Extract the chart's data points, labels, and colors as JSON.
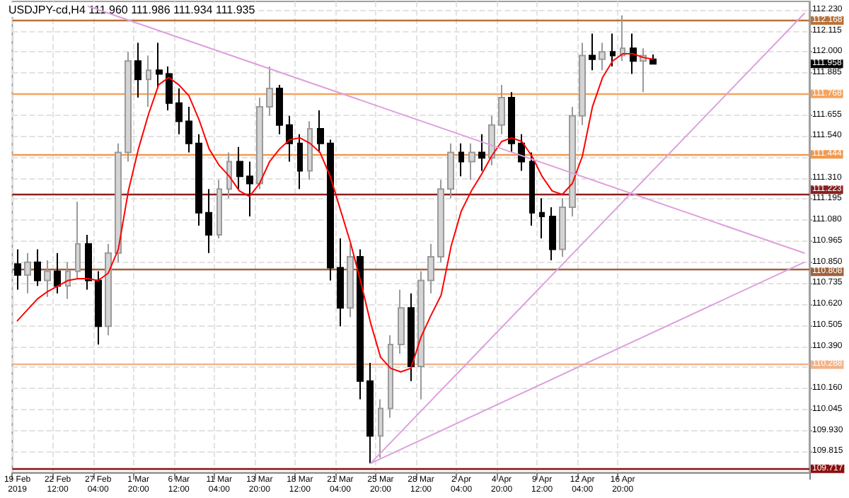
{
  "chart_data": {
    "type": "candlestick",
    "title": "USDJPY-cd,H4 111.960 111.986 111.934 111.935",
    "categories": [
      "19 Feb 2019",
      null,
      null,
      null,
      "22 Feb 12:00",
      null,
      null,
      null,
      "27 Feb 04:00",
      null,
      null,
      null,
      "1 Mar 20:00",
      null,
      null,
      null,
      "6 Mar 12:00",
      null,
      null,
      null,
      "11 Mar 04:00",
      null,
      null,
      null,
      "13 Mar 20:00",
      null,
      null,
      null,
      "18 Mar 12:00",
      null,
      null,
      null,
      "21 Mar 04:00",
      null,
      null,
      null,
      "25 Mar 20:00",
      null,
      null,
      null,
      "28 Mar 12:00",
      null,
      null,
      null,
      "2 Apr 04:00",
      null,
      null,
      null,
      "4 Apr 20:00",
      null,
      null,
      null,
      "9 Apr 12:00",
      null,
      null,
      null,
      "12 Apr 04:00",
      null,
      null,
      null,
      "16 Apr 20:00",
      null,
      null,
      null,
      null,
      null,
      null,
      null,
      null,
      null,
      null,
      null,
      null,
      null,
      null,
      null,
      null,
      null,
      null
    ],
    "ohlc": [
      [
        110.84,
        110.92,
        110.7,
        110.78
      ],
      [
        110.78,
        110.9,
        110.68,
        110.85
      ],
      [
        110.85,
        110.92,
        110.72,
        110.75
      ],
      [
        110.75,
        110.86,
        110.66,
        110.8
      ],
      [
        110.8,
        110.9,
        110.68,
        110.72
      ],
      [
        110.72,
        110.85,
        110.65,
        110.8
      ],
      [
        110.8,
        111.18,
        110.76,
        110.95
      ],
      [
        110.95,
        111.0,
        110.7,
        110.75
      ],
      [
        110.75,
        110.8,
        110.4,
        110.5
      ],
      [
        110.5,
        110.95,
        110.45,
        110.9
      ],
      [
        110.9,
        111.5,
        110.85,
        111.45
      ],
      [
        111.45,
        112.0,
        111.4,
        111.95
      ],
      [
        111.95,
        112.05,
        111.75,
        111.85
      ],
      [
        111.85,
        111.98,
        111.7,
        111.9
      ],
      [
        111.9,
        112.05,
        111.8,
        111.88
      ],
      [
        111.88,
        111.92,
        111.68,
        111.72
      ],
      [
        111.72,
        111.8,
        111.55,
        111.62
      ],
      [
        111.62,
        111.7,
        111.45,
        111.5
      ],
      [
        111.5,
        111.55,
        111.05,
        111.12
      ],
      [
        111.12,
        111.25,
        110.9,
        111.0
      ],
      [
        111.0,
        111.3,
        110.98,
        111.25
      ],
      [
        111.25,
        111.45,
        111.2,
        111.4
      ],
      [
        111.4,
        111.48,
        111.25,
        111.32
      ],
      [
        111.32,
        111.4,
        111.1,
        111.28
      ],
      [
        111.28,
        111.75,
        111.25,
        111.7
      ],
      [
        111.7,
        111.92,
        111.65,
        111.8
      ],
      [
        111.8,
        111.82,
        111.55,
        111.6
      ],
      [
        111.6,
        111.65,
        111.4,
        111.5
      ],
      [
        111.5,
        111.55,
        111.25,
        111.35
      ],
      [
        111.35,
        111.62,
        111.3,
        111.58
      ],
      [
        111.58,
        111.68,
        111.45,
        111.5
      ],
      [
        111.5,
        111.52,
        110.75,
        110.82
      ],
      [
        110.82,
        110.98,
        110.5,
        110.6
      ],
      [
        110.6,
        110.95,
        110.55,
        110.88
      ],
      [
        110.88,
        110.92,
        110.1,
        110.2
      ],
      [
        110.2,
        110.3,
        109.75,
        109.9
      ],
      [
        109.9,
        110.1,
        109.78,
        110.05
      ],
      [
        110.05,
        110.45,
        110.0,
        110.4
      ],
      [
        110.4,
        110.7,
        110.35,
        110.6
      ],
      [
        110.6,
        110.68,
        110.2,
        110.28
      ],
      [
        110.28,
        110.8,
        110.1,
        110.75
      ],
      [
        110.75,
        110.95,
        110.68,
        110.88
      ],
      [
        110.88,
        111.3,
        110.85,
        111.25
      ],
      [
        111.25,
        111.5,
        111.2,
        111.45
      ],
      [
        111.45,
        111.5,
        111.32,
        111.4
      ],
      [
        111.4,
        111.5,
        111.3,
        111.45
      ],
      [
        111.45,
        111.55,
        111.35,
        111.42
      ],
      [
        111.42,
        111.65,
        111.38,
        111.6
      ],
      [
        111.6,
        111.82,
        111.55,
        111.75
      ],
      [
        111.75,
        111.78,
        111.45,
        111.5
      ],
      [
        111.5,
        111.55,
        111.35,
        111.4
      ],
      [
        111.4,
        111.45,
        111.05,
        111.12
      ],
      [
        111.12,
        111.2,
        110.98,
        111.1
      ],
      [
        111.1,
        111.15,
        110.86,
        110.92
      ],
      [
        110.92,
        111.2,
        110.88,
        111.15
      ],
      [
        111.15,
        111.7,
        111.1,
        111.65
      ],
      [
        111.65,
        112.05,
        111.6,
        111.98
      ],
      [
        111.98,
        112.1,
        111.9,
        111.96
      ],
      [
        111.96,
        112.05,
        111.9,
        112.0
      ],
      [
        112.0,
        112.1,
        111.92,
        111.98
      ],
      [
        111.98,
        112.2,
        111.95,
        112.02
      ],
      [
        112.02,
        112.1,
        111.88,
        111.95
      ],
      [
        111.95,
        112.02,
        111.78,
        111.98
      ],
      [
        111.96,
        111.986,
        111.934,
        111.935
      ],
      null,
      null,
      null,
      null,
      null,
      null,
      null,
      null,
      null,
      null,
      null,
      null,
      null,
      null,
      null
    ],
    "series": [
      {
        "type": "line",
        "color": "#ff0000",
        "values": [
          110.53,
          110.59,
          110.65,
          110.69,
          110.72,
          110.75,
          110.76,
          110.76,
          110.75,
          110.79,
          110.92,
          111.24,
          111.47,
          111.66,
          111.82,
          111.86,
          111.82,
          111.76,
          111.63,
          111.47,
          111.38,
          111.32,
          111.24,
          111.21,
          111.28,
          111.4,
          111.47,
          111.52,
          111.53,
          111.5,
          111.45,
          111.32,
          111.14,
          110.96,
          110.75,
          110.52,
          110.33,
          110.27,
          110.25,
          110.27,
          110.44,
          110.56,
          110.67,
          110.94,
          111.13,
          111.24,
          111.33,
          111.43,
          111.51,
          111.53,
          111.51,
          111.43,
          111.32,
          111.24,
          111.22,
          111.28,
          111.43,
          111.7,
          111.86,
          111.95,
          111.99,
          111.99,
          111.97,
          111.96,
          null,
          null,
          null,
          null,
          null,
          null,
          null,
          null,
          null,
          null,
          null,
          null,
          null,
          null,
          null
        ]
      },
      {
        "type": "line",
        "color": "#dda0dd",
        "values": [
          null,
          null,
          null,
          null,
          null,
          null,
          null,
          112.25,
          null,
          null,
          null,
          null,
          null,
          null,
          null,
          null,
          null,
          null,
          null,
          null,
          null,
          null,
          null,
          null,
          null,
          null,
          null,
          null,
          null,
          null,
          null,
          null,
          null,
          null,
          null,
          null,
          null,
          null,
          null,
          null,
          null,
          null,
          null,
          null,
          null,
          null,
          null,
          null,
          null,
          null,
          null,
          null,
          null,
          null,
          null,
          null,
          null,
          null,
          null,
          null,
          null,
          null,
          null,
          null,
          null,
          null,
          null,
          null,
          null,
          null,
          null,
          null,
          null,
          null,
          null,
          null,
          null,
          null,
          110.9
        ]
      },
      {
        "type": "line",
        "color": "#dda0dd",
        "values": [
          null,
          null,
          null,
          null,
          null,
          null,
          null,
          null,
          null,
          null,
          null,
          null,
          null,
          null,
          null,
          null,
          null,
          null,
          null,
          null,
          null,
          null,
          null,
          null,
          null,
          null,
          null,
          null,
          null,
          null,
          null,
          null,
          null,
          null,
          null,
          109.75,
          null,
          null,
          null,
          null,
          null,
          null,
          null,
          null,
          null,
          null,
          null,
          null,
          null,
          null,
          null,
          null,
          null,
          null,
          null,
          null,
          null,
          null,
          null,
          null,
          null,
          null,
          null,
          null,
          null,
          null,
          null,
          null,
          null,
          null,
          null,
          null,
          null,
          null,
          null,
          null,
          null,
          null,
          112.21
        ]
      },
      {
        "type": "line",
        "color": "#dda0dd",
        "values": [
          null,
          null,
          null,
          null,
          null,
          null,
          null,
          null,
          null,
          null,
          null,
          null,
          null,
          null,
          null,
          null,
          null,
          null,
          null,
          null,
          null,
          null,
          null,
          null,
          null,
          null,
          null,
          null,
          null,
          null,
          null,
          null,
          null,
          null,
          null,
          109.75,
          null,
          null,
          null,
          null,
          null,
          null,
          null,
          null,
          null,
          null,
          null,
          null,
          null,
          null,
          null,
          null,
          null,
          null,
          null,
          null,
          null,
          null,
          null,
          null,
          null,
          null,
          null,
          null,
          null,
          null,
          null,
          null,
          null,
          null,
          null,
          null,
          null,
          null,
          null,
          null,
          null,
          null,
          110.85
        ]
      }
    ],
    "ylim": [
      109.7,
      112.276
    ],
    "yticks": [
      {
        "value": 109.815,
        "label": "109.815"
      },
      {
        "value": 109.93,
        "label": "109.930"
      },
      {
        "value": 110.045,
        "label": "110.045"
      },
      {
        "value": 110.16,
        "label": "110.160"
      },
      {
        "value": 110.275,
        "label": null
      },
      {
        "value": 110.39,
        "label": "110.390"
      },
      {
        "value": 110.505,
        "label": "110.505"
      },
      {
        "value": 110.62,
        "label": "110.620"
      },
      {
        "value": 110.735,
        "label": "110.735"
      },
      {
        "value": 110.85,
        "label": "110.850"
      },
      {
        "value": 110.965,
        "label": "110.965"
      },
      {
        "value": 111.08,
        "label": "111.080"
      },
      {
        "value": 111.195,
        "label": "111.195"
      },
      {
        "value": 111.31,
        "label": "111.310"
      },
      {
        "value": 111.425,
        "label": null
      },
      {
        "value": 111.54,
        "label": "111.540"
      },
      {
        "value": 111.655,
        "label": "111.655"
      },
      {
        "value": 111.77,
        "label": null
      },
      {
        "value": 111.885,
        "label": "111.885"
      },
      {
        "value": 112.0,
        "label": "112.000"
      },
      {
        "value": 112.115,
        "label": "112.115"
      },
      {
        "value": 112.23,
        "label": "112.230"
      }
    ],
    "grid": true,
    "ref_lines": [
      {
        "axis": "y",
        "value": 112.168,
        "label": "112.168",
        "color": "#b8733c"
      },
      {
        "axis": "y",
        "value": 111.768,
        "label": "111.768",
        "color": "#f4a460"
      },
      {
        "axis": "y",
        "value": 111.444,
        "label": "111.444",
        "color": "#f09a50"
      },
      {
        "axis": "y",
        "value": 111.223,
        "label": "111.223",
        "color": "#8b2020"
      },
      {
        "axis": "y",
        "value": 110.808,
        "label": "110.808",
        "color": "#a0623c"
      },
      {
        "axis": "y",
        "value": 110.288,
        "label": "110.288",
        "color": "#f2b48a"
      },
      {
        "axis": "y",
        "value": 109.717,
        "label": "109.717",
        "color": "#8b1010"
      }
    ],
    "annotations": [
      "111.958"
    ]
  }
}
